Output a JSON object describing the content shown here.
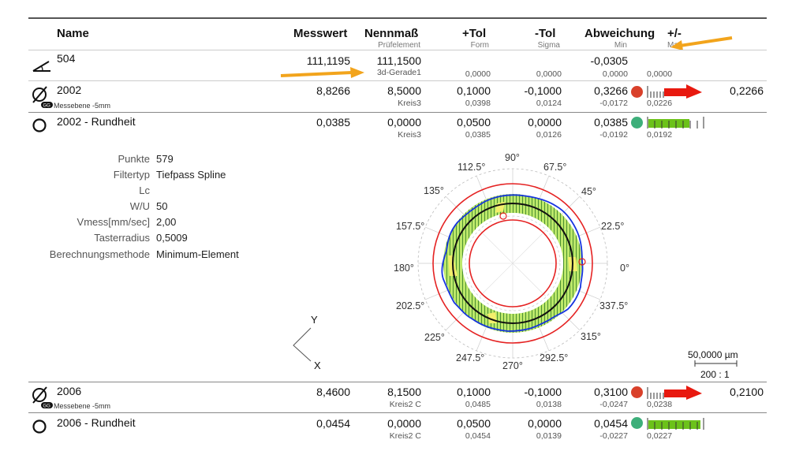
{
  "header": {
    "name": "Name",
    "messwert": "Messwert",
    "nennmass": "Nennmaß",
    "nennmass_sub": "Prüfelement",
    "plus_tol": "+Tol",
    "plus_tol_sub": "Form",
    "minus_tol": "-Tol",
    "minus_tol_sub": "Sigma",
    "abweichung": "Abweichung",
    "plus_minus": "+/-",
    "min_label": "Min",
    "max_label": "Max"
  },
  "rows": [
    {
      "icon": "angle-icon",
      "name": "504",
      "messwert": "111,1195",
      "nennmass": "111,1500",
      "nennmass_sub": "3d-Gerade1",
      "plus_tol": "",
      "plus_tol_sub": "0,0000",
      "minus_tol": "",
      "minus_tol_sub": "0,0000",
      "abweichung": "-0,0305",
      "min": "0,0000",
      "max": "0,0000"
    },
    {
      "icon": "diameter-icon",
      "name": "2002",
      "sub_label": "Messebene -5mm",
      "messwert": "8,8266",
      "nennmass": "8,5000",
      "nennmass_sub": "Kreis3",
      "plus_tol": "0,1000",
      "plus_tol_sub": "0,0398",
      "minus_tol": "-0,1000",
      "minus_tol_sub": "0,0124",
      "abweichung": "0,3266",
      "min": "-0,0172",
      "max": "0,0226",
      "status": "red",
      "over": "0,2266"
    },
    {
      "icon": "circularity-icon",
      "name": "2002 - Rundheit",
      "messwert": "0,0385",
      "nennmass": "0,0000",
      "nennmass_sub": "Kreis3",
      "plus_tol": "0,0500",
      "plus_tol_sub": "0,0385",
      "minus_tol": "0,0000",
      "minus_tol_sub": "0,0126",
      "abweichung": "0,0385",
      "min": "-0,0192",
      "max": "0,0192",
      "status": "green"
    },
    {
      "icon": "diameter-icon",
      "name": "2006",
      "sub_label": "Messebene -5mm",
      "messwert": "8,4600",
      "nennmass": "8,1500",
      "nennmass_sub": "Kreis2 C",
      "plus_tol": "0,1000",
      "plus_tol_sub": "0,0485",
      "minus_tol": "-0,1000",
      "minus_tol_sub": "0,0138",
      "abweichung": "0,3100",
      "min": "-0,0247",
      "max": "0,0238",
      "status": "red",
      "over": "0,2100"
    },
    {
      "icon": "circularity-icon",
      "name": "2006 - Rundheit",
      "messwert": "0,0454",
      "nennmass": "0,0000",
      "nennmass_sub": "Kreis2 C",
      "plus_tol": "0,0500",
      "plus_tol_sub": "0,0454",
      "minus_tol": "0,0000",
      "minus_tol_sub": "0,0139",
      "abweichung": "0,0454",
      "min": "-0,0227",
      "max": "0,0227",
      "status": "green"
    }
  ],
  "details": [
    {
      "label": "Punkte",
      "value": "579"
    },
    {
      "label": "Filtertyp",
      "value": "Tiefpass  Spline"
    },
    {
      "label": "Lc",
      "value": ""
    },
    {
      "label": "W/U",
      "value": "50"
    },
    {
      "label": "Vmess[mm/sec]",
      "value": "2,00"
    },
    {
      "label": "Tasterradius",
      "value": "0,5009"
    },
    {
      "label": "Berechnungsmethode",
      "value": "Minimum-Element"
    }
  ],
  "polar": {
    "angles": [
      "90°",
      "67.5°",
      "45°",
      "22.5°",
      "0°",
      "337.5°",
      "315°",
      "292.5°",
      "270°",
      "247.5°",
      "225°",
      "202.5°",
      "180°",
      "157.5°",
      "135°",
      "112.5°"
    ],
    "scale_value": "50,0000 µm",
    "scale_ratio": "200 : 1",
    "axis_y": "Y",
    "axis_x": "X"
  },
  "colors": {
    "red": "#d9402a",
    "green": "#3daf7a",
    "arrow_red": "#e8190f",
    "bar_green": "#6cc21a",
    "annotation_orange": "#f2a41c",
    "profile_blue": "#1533e0",
    "tol_red": "#e52222"
  }
}
